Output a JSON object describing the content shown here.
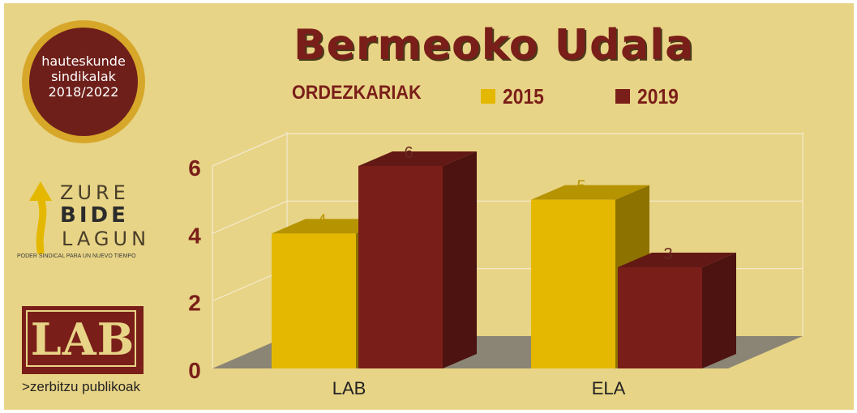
{
  "badge": {
    "lines": [
      "hauteskunde",
      "sindikalak",
      "2018/2022"
    ]
  },
  "logo_zbl": {
    "words": [
      "ZURE",
      "BIDE",
      "LAGUN"
    ],
    "tagline": "PODER SINDICAL PARA UN NUEVO TIEMPO"
  },
  "logo_lab": {
    "text": "LAB",
    "subtitle": ">zerbitzu publikoak"
  },
  "colors": {
    "y2015": "#e4b800",
    "y2019": "#7a1e19",
    "background": "#e8d486",
    "accent": "#7a1e19"
  },
  "chart_data": {
    "type": "bar",
    "title": "Bermeoko Udala",
    "subtitle": "ORDEZKARIAK",
    "categories": [
      "LAB",
      "ELA"
    ],
    "series": [
      {
        "name": "2015",
        "values": [
          4,
          5
        ]
      },
      {
        "name": "2019",
        "values": [
          6,
          3
        ]
      }
    ],
    "ylim": [
      0,
      6
    ],
    "yticks": [
      "0",
      "2",
      "4",
      "6"
    ],
    "grid": true,
    "legend": "top"
  }
}
